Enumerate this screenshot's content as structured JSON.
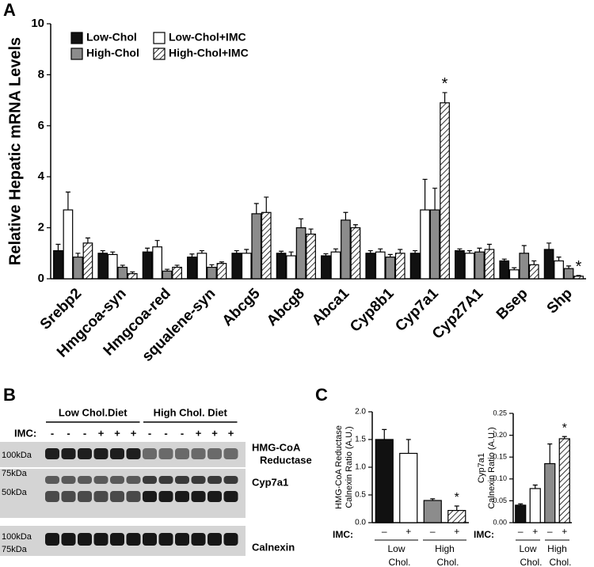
{
  "panel_labels": [
    "A",
    "B",
    "C"
  ],
  "chart_data": [
    {
      "type": "bar",
      "ylabel": "Relative Hepatic mRNA Levels",
      "categories": [
        "Srebp2",
        "Hmgcoa-syn",
        "Hmgcoa-red",
        "squalene-syn",
        "Abcg5",
        "Abcg8",
        "Abca1",
        "Cyp8b1",
        "Cyp7a1",
        "Cyp27A1",
        "Bsep",
        "Shp"
      ],
      "series": [
        {
          "name": "Low-Chol",
          "color": "#111111",
          "hatched": false,
          "values": [
            1.1,
            1.0,
            1.05,
            0.85,
            1.0,
            1.0,
            0.9,
            1.0,
            1.0,
            1.1,
            0.7,
            1.15
          ],
          "errors": [
            0.25,
            0.1,
            0.15,
            0.12,
            0.1,
            0.08,
            0.08,
            0.1,
            0.1,
            0.07,
            0.07,
            0.25
          ],
          "significance": [
            null,
            null,
            null,
            null,
            null,
            null,
            null,
            null,
            null,
            null,
            null,
            null
          ]
        },
        {
          "name": "Low-Chol+IMC",
          "color": "#ffffff",
          "hatched": false,
          "values": [
            2.7,
            0.95,
            1.25,
            1.0,
            1.0,
            0.9,
            1.05,
            1.05,
            2.7,
            1.0,
            0.35,
            0.7
          ],
          "errors": [
            0.7,
            0.1,
            0.25,
            0.1,
            0.15,
            0.15,
            0.12,
            0.12,
            1.2,
            0.1,
            0.08,
            0.15
          ],
          "significance": [
            null,
            null,
            null,
            null,
            null,
            null,
            null,
            null,
            null,
            null,
            null,
            null
          ]
        },
        {
          "name": "High-Chol",
          "color": "#8c8c8c",
          "hatched": false,
          "values": [
            0.85,
            0.45,
            0.3,
            0.45,
            2.55,
            2.0,
            2.3,
            0.85,
            2.7,
            1.05,
            1.0,
            0.4
          ],
          "errors": [
            0.15,
            0.08,
            0.07,
            0.1,
            0.4,
            0.35,
            0.3,
            0.1,
            0.85,
            0.15,
            0.3,
            0.1
          ],
          "significance": [
            null,
            null,
            null,
            null,
            null,
            null,
            null,
            null,
            null,
            null,
            null,
            null
          ]
        },
        {
          "name": "High-Chol+IMC",
          "color": "#ffffff",
          "hatched": true,
          "values": [
            1.4,
            0.2,
            0.45,
            0.6,
            2.6,
            1.75,
            2.0,
            1.0,
            6.9,
            1.15,
            0.55,
            0.1
          ],
          "errors": [
            0.2,
            0.07,
            0.08,
            0.06,
            0.6,
            0.2,
            0.12,
            0.15,
            0.4,
            0.2,
            0.15,
            0.03
          ],
          "significance": [
            null,
            null,
            null,
            null,
            null,
            null,
            null,
            null,
            "*",
            null,
            null,
            "*"
          ]
        }
      ],
      "ylim": [
        0,
        10
      ],
      "yticks": [
        0,
        2,
        4,
        6,
        8,
        10
      ]
    },
    {
      "type": "bar",
      "ylabel": [
        "HMG-CoA Reductase",
        "Calnexin Ratio (A.U.)"
      ],
      "xlabel": "IMC:",
      "categories": [
        "–",
        "+",
        "–",
        "+"
      ],
      "groups": [
        [
          "Low",
          "Chol."
        ],
        [
          "High",
          "Chol."
        ]
      ],
      "values": [
        1.5,
        1.25,
        0.4,
        0.22
      ],
      "errors": [
        0.18,
        0.25,
        0.03,
        0.08
      ],
      "colors": [
        "#111111",
        "#ffffff",
        "#8c8c8c",
        "#ffffff"
      ],
      "hatched": [
        false,
        false,
        false,
        true
      ],
      "significance": [
        null,
        null,
        null,
        "*"
      ],
      "ylim": [
        0,
        2
      ],
      "yticks": [
        {
          "value": 0,
          "label": "0.0"
        },
        0.5,
        {
          "value": 1,
          "label": "1.0"
        },
        1.5,
        {
          "value": 2,
          "label": "2.0"
        }
      ]
    },
    {
      "type": "bar",
      "ylabel": [
        "Cyp7a1",
        "Calnexin Ratio (A.U.)"
      ],
      "xlabel": "IMC:",
      "categories": [
        "–",
        "+",
        "–",
        "+"
      ],
      "groups": [
        [
          "Low",
          "Chol."
        ],
        [
          "High",
          "Chol."
        ]
      ],
      "values": [
        0.04,
        0.078,
        0.135,
        0.192
      ],
      "errors": [
        0.003,
        0.008,
        0.045,
        0.005
      ],
      "colors": [
        "#111111",
        "#ffffff",
        "#8c8c8c",
        "#ffffff"
      ],
      "hatched": [
        false,
        false,
        false,
        true
      ],
      "significance": [
        null,
        null,
        null,
        "*"
      ],
      "ylim": [
        0,
        0.25
      ],
      "yticks": [
        {
          "value": 0,
          "label": "0.00"
        },
        0.05,
        {
          "value": 0.1,
          "label": "0.10"
        },
        0.15,
        {
          "value": 0.2,
          "label": "0.20"
        },
        0.25
      ]
    }
  ],
  "blot": {
    "groups": [
      "Low Chol.Diet",
      "High Chol. Diet"
    ],
    "imc_label": "IMC:",
    "lanes": [
      "-",
      "-",
      "-",
      "+",
      "+",
      "+",
      "-",
      "-",
      "-",
      "+",
      "+",
      "+"
    ],
    "kda": [
      "100kDa",
      "75kDa",
      "50kDa",
      "100kDa",
      "75kDa"
    ],
    "proteins": [
      [
        "HMG-CoA",
        "Reductase"
      ],
      [
        "Cyp7a1"
      ],
      [
        "Calnexin"
      ]
    ]
  }
}
